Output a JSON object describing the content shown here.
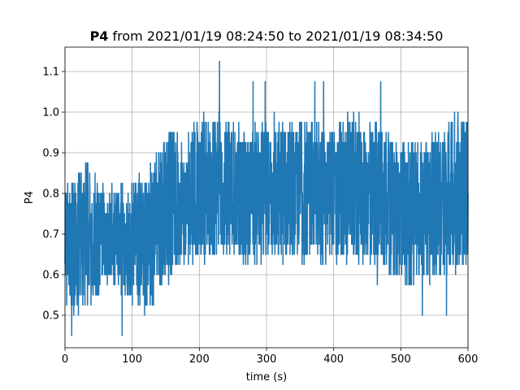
{
  "chart_data": {
    "type": "line",
    "title_bold": "P4",
    "title_rest": " from 2021/01/19 08:24:50 to 2021/01/19 08:34:50",
    "xlabel": "time (s)",
    "ylabel": "P4",
    "xlim": [
      0,
      600
    ],
    "ylim": [
      0.42,
      1.16
    ],
    "xticks": [
      0,
      100,
      200,
      300,
      400,
      500,
      600
    ],
    "xtick_labels": [
      "0",
      "100",
      "200",
      "300",
      "400",
      "500",
      "600"
    ],
    "yticks": [
      0.5,
      0.6,
      0.7,
      0.8,
      0.9,
      1.0,
      1.1
    ],
    "ytick_labels": [
      "0.5",
      "0.6",
      "0.7",
      "0.8",
      "0.9",
      "1.0",
      "1.1"
    ],
    "grid": true,
    "line_color": "#1f77b4",
    "series": [
      {
        "x": [
          0,
          30,
          60,
          90,
          120,
          150,
          180,
          210,
          240,
          270,
          300,
          330,
          360,
          390,
          420,
          450,
          480,
          510,
          540,
          570,
          600
        ],
        "min": [
          0.5,
          0.5,
          0.575,
          0.55,
          0.5,
          0.575,
          0.625,
          0.625,
          0.65,
          0.625,
          0.625,
          0.625,
          0.625,
          0.625,
          0.625,
          0.625,
          0.6,
          0.575,
          0.575,
          0.6,
          0.625
        ],
        "max": [
          0.825,
          0.875,
          0.825,
          0.825,
          0.85,
          0.95,
          0.95,
          1.0,
          1.0,
          0.95,
          1.0,
          1.0,
          1.0,
          0.95,
          1.0,
          1.0,
          0.95,
          0.925,
          0.925,
          1.0,
          1.0
        ],
        "center": [
          0.68,
          0.68,
          0.69,
          0.68,
          0.7,
          0.75,
          0.78,
          0.8,
          0.81,
          0.8,
          0.82,
          0.82,
          0.81,
          0.8,
          0.81,
          0.8,
          0.79,
          0.77,
          0.77,
          0.8,
          0.8
        ],
        "spikes": [
          [
            10,
            0.45
          ],
          [
            85,
            0.45
          ],
          [
            230,
            1.125
          ],
          [
            280,
            1.075
          ],
          [
            298,
            1.075
          ],
          [
            372,
            1.075
          ],
          [
            385,
            1.075
          ],
          [
            470,
            1.075
          ],
          [
            532,
            0.5
          ],
          [
            568,
            0.5
          ],
          [
            465,
            0.575
          ],
          [
            512,
            0.575
          ]
        ]
      }
    ]
  }
}
